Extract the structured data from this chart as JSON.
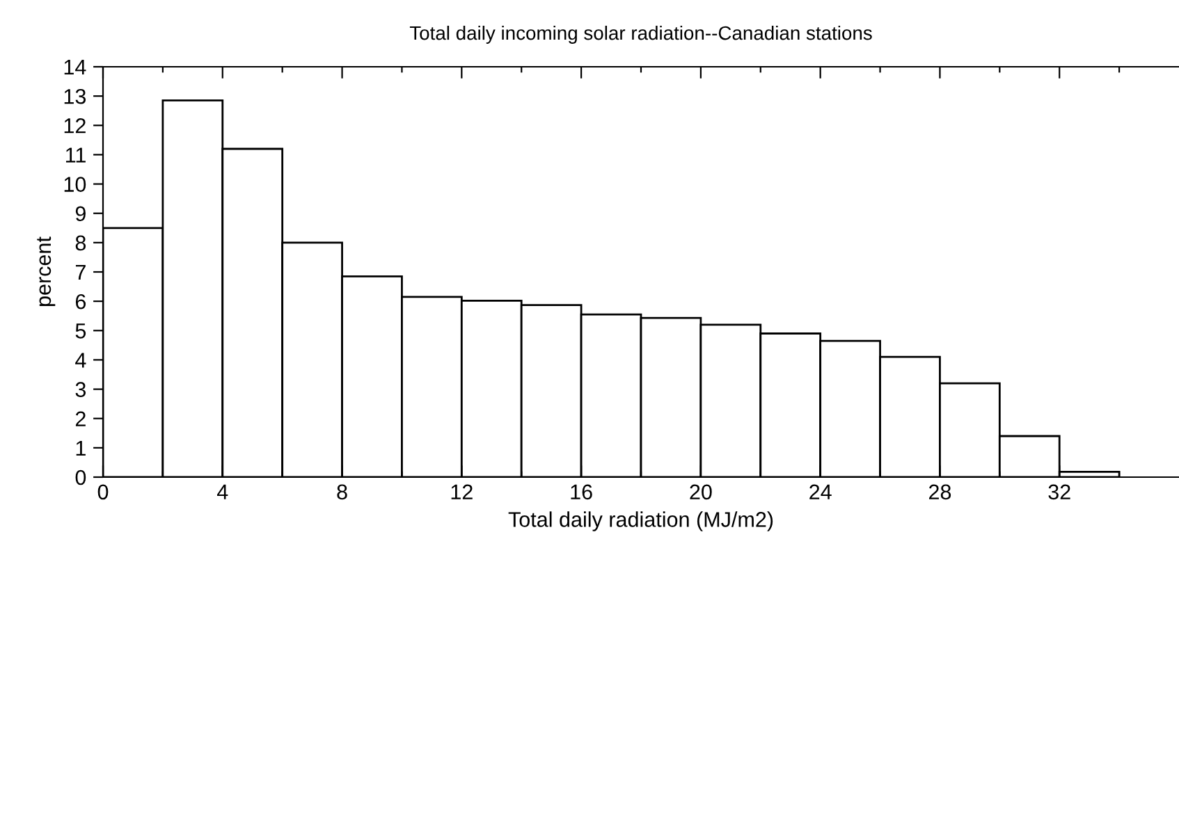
{
  "chart_data": {
    "type": "histogram",
    "title": "Total daily incoming solar radiation--Canadian stations",
    "xlabel": "Total daily radiation (MJ/m2)",
    "ylabel": "percent",
    "bins": [
      0,
      2,
      4,
      6,
      8,
      10,
      12,
      14,
      16,
      18,
      20,
      22,
      24,
      26,
      28,
      30,
      32,
      34
    ],
    "values": [
      8.5,
      12.85,
      11.2,
      8.0,
      6.85,
      6.15,
      6.02,
      5.87,
      5.55,
      5.43,
      5.2,
      4.9,
      4.65,
      4.1,
      3.2,
      1.4,
      0.18
    ],
    "color": "#ffffff",
    "xlim": [
      0,
      36
    ],
    "ylim": [
      0,
      14
    ],
    "xticks": [
      0,
      {
        "value": 2,
        "label": null
      },
      4,
      {
        "value": 6,
        "label": null
      },
      8,
      {
        "value": 10,
        "label": null
      },
      12,
      {
        "value": 14,
        "label": null
      },
      16,
      {
        "value": 18,
        "label": null
      },
      20,
      {
        "value": 22,
        "label": null
      },
      24,
      {
        "value": 26,
        "label": null
      },
      28,
      {
        "value": 30,
        "label": null
      },
      32,
      {
        "value": 34,
        "label": null
      }
    ],
    "yticks": [
      0,
      1,
      2,
      3,
      4,
      5,
      6,
      7,
      8,
      9,
      10,
      11,
      12,
      13,
      14
    ],
    "grid": false,
    "legend": false
  }
}
